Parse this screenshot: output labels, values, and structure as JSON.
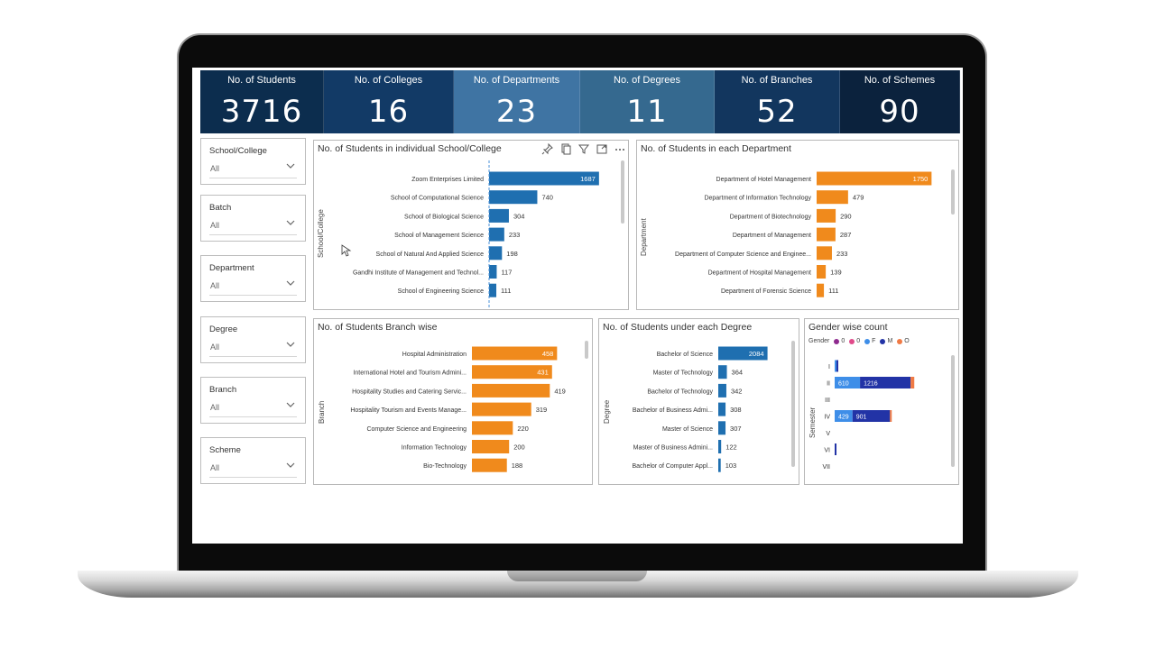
{
  "kpis": [
    {
      "label": "No. of Students",
      "value": "3716",
      "color": "#0c2d4e"
    },
    {
      "label": "No. of Colleges",
      "value": "16",
      "color": "#123a66"
    },
    {
      "label": "No. of Departments",
      "value": "23",
      "color": "#3f74a3"
    },
    {
      "label": "No. of Degrees",
      "value": "11",
      "color": "#35698f"
    },
    {
      "label": "No. of Branches",
      "value": "52",
      "color": "#12365e"
    },
    {
      "label": "No. of Schemes",
      "value": "90",
      "color": "#0b223d"
    }
  ],
  "slicers": [
    {
      "title": "School/College",
      "value": "All"
    },
    {
      "title": "Batch",
      "value": "All"
    },
    {
      "title": "Department",
      "value": "All"
    },
    {
      "title": "Degree",
      "value": "All"
    },
    {
      "title": "Branch",
      "value": "All"
    },
    {
      "title": "Scheme",
      "value": "All"
    }
  ],
  "charts": {
    "school": {
      "title": "No. of Students in individual School/College",
      "axis_label": "School/College",
      "color": "#1f6fb0"
    },
    "department": {
      "title": "No. of Students in each Department",
      "axis_label": "Department",
      "color": "#f08a1c"
    },
    "branch": {
      "title": "No. of Students Branch wise",
      "axis_label": "Branch",
      "color": "#f08a1c"
    },
    "degree": {
      "title": "No. of Students under each Degree",
      "axis_label": "Degree",
      "color": "#1f6fb0"
    },
    "gender": {
      "title": "Gender wise count",
      "axis_label": "Semester",
      "legend_title": "Gender",
      "legend": [
        {
          "name": "0",
          "color": "#8e2a8e"
        },
        {
          "name": "0",
          "color": "#e04a8a"
        },
        {
          "name": "F",
          "color": "#3e8ee8"
        },
        {
          "name": "M",
          "color": "#2233a6"
        },
        {
          "name": "O",
          "color": "#f07a45"
        }
      ]
    }
  },
  "chart_data": [
    {
      "type": "bar",
      "title": "No. of Students in individual School/College",
      "ylabel": "School/College",
      "categories": [
        "Zoom Enterprises Limited",
        "School of Computational Science",
        "School of Biological Science",
        "School of Management Science",
        "School of Natural And Applied Science",
        "Gandhi Institute of Management and Technol...",
        "School of Engineering Science"
      ],
      "values": [
        1687,
        740,
        304,
        233,
        198,
        117,
        111
      ],
      "xlim": [
        0,
        1800
      ]
    },
    {
      "type": "bar",
      "title": "No. of Students in each Department",
      "ylabel": "Department",
      "categories": [
        "Department of Hotel Management",
        "Department of Information Technology",
        "Department of Biotechnology",
        "Department of Management",
        "Department of Computer Science and Enginee...",
        "Department of Hospital Management",
        "Department of Forensic Science"
      ],
      "values": [
        1750,
        479,
        290,
        287,
        233,
        139,
        111
      ],
      "xlim": [
        0,
        1800
      ]
    },
    {
      "type": "bar",
      "title": "No. of Students Branch wise",
      "ylabel": "Branch",
      "categories": [
        "Hospital Administration",
        "International Hotel and Tourism Admini...",
        "Hospitality Studies and Catering Servic...",
        "Hospitality Tourism and Events Manage...",
        "Computer Science and Engineering",
        "Information Technology",
        "Bio-Technology"
      ],
      "values": [
        458,
        431,
        419,
        319,
        220,
        200,
        188
      ],
      "xlim": [
        0,
        500
      ]
    },
    {
      "type": "bar",
      "title": "No. of Students under each Degree",
      "ylabel": "Degree",
      "categories": [
        "Bachelor of Science",
        "Master of Technology",
        "Bachelor of Technology",
        "Bachelor of Business Admi...",
        "Master of Science",
        "Master of Business Admini...",
        "Bachelor of Computer Appl..."
      ],
      "values": [
        2084,
        364,
        342,
        308,
        307,
        122,
        103
      ],
      "xlim": [
        0,
        2100
      ]
    },
    {
      "type": "bar",
      "title": "Gender wise count",
      "ylabel": "Semester",
      "categories": [
        "I",
        "II",
        "III",
        "IV",
        "V",
        "VI",
        "VII"
      ],
      "series": [
        {
          "name": "F",
          "values": [
            10,
            610,
            0,
            429,
            0,
            0,
            0
          ]
        },
        {
          "name": "M",
          "values": [
            20,
            1216,
            0,
            901,
            0,
            30,
            0
          ]
        },
        {
          "name": "O",
          "values": [
            0,
            90,
            0,
            10,
            0,
            0,
            0
          ]
        }
      ],
      "stacked": true
    }
  ]
}
